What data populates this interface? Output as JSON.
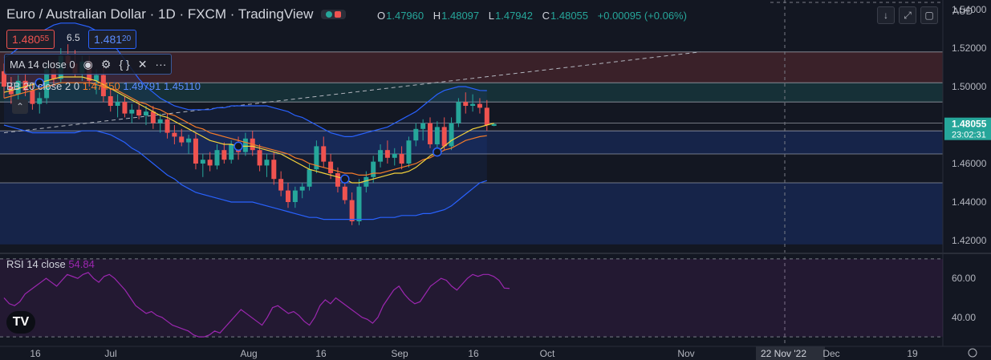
{
  "header": {
    "symbol": "Euro / Australian Dollar",
    "interval": "1D",
    "exchange": "FXCM",
    "source": "TradingView",
    "ohlc": {
      "o_label": "O",
      "o": "1.47960",
      "h_label": "H",
      "h": "1.48097",
      "l_label": "L",
      "l": "1.47942",
      "c_label": "C",
      "c": "1.48055",
      "change": "+0.00095 (+0.06%)"
    },
    "sell_price_main": "1.480",
    "sell_price_sub": "55",
    "spread": "6.5",
    "buy_price_main": "1.481",
    "buy_price_sub": "20",
    "currency": "AUD"
  },
  "indicators": {
    "ma": {
      "label": "MA 14 close 0"
    },
    "bb": {
      "label": "BB 20 close 2 0",
      "basis": "1.47450",
      "upper": "1.49791",
      "lower": "1.45110"
    },
    "rsi": {
      "label": "RSI 14 close",
      "value": "54.84"
    }
  },
  "colors": {
    "up": "#26a69a",
    "down": "#ef5350",
    "ma": "#f5d33b",
    "bb_basis": "#f57c2a",
    "bb_band": "#2962ff",
    "rsi": "#9c27b0",
    "bg": "#131722"
  },
  "icons": [
    "eye-icon",
    "gear-icon",
    "braces-icon",
    "close-icon",
    "more-icon",
    "download-icon",
    "fullscreen-icon",
    "maximize-icon"
  ],
  "chart_data": [
    {
      "type": "candlestick",
      "title": "Euro / Australian Dollar",
      "x_ticks": [
        "16",
        "Jul",
        "Aug",
        "16",
        "Sep",
        "16",
        "Oct",
        "Nov",
        "22 Nov '22",
        "Dec",
        "19"
      ],
      "y_ticks": [
        "1.54000",
        "1.52000",
        "1.50000",
        "1.48000",
        "1.46000",
        "1.44000",
        "1.42000"
      ],
      "ylim": [
        1.415,
        1.545
      ],
      "last_price": "1.48055",
      "countdown": "23:02:31",
      "candles": [
        {
          "o": 1.508,
          "h": 1.512,
          "l": 1.494,
          "c": 1.5
        },
        {
          "o": 1.5,
          "h": 1.505,
          "l": 1.491,
          "c": 1.496
        },
        {
          "o": 1.496,
          "h": 1.506,
          "l": 1.492,
          "c": 1.503
        },
        {
          "o": 1.503,
          "h": 1.507,
          "l": 1.495,
          "c": 1.498
        },
        {
          "o": 1.498,
          "h": 1.502,
          "l": 1.488,
          "c": 1.491
        },
        {
          "o": 1.491,
          "h": 1.497,
          "l": 1.486,
          "c": 1.494
        },
        {
          "o": 1.494,
          "h": 1.512,
          "l": 1.491,
          "c": 1.509
        },
        {
          "o": 1.509,
          "h": 1.513,
          "l": 1.5,
          "c": 1.504
        },
        {
          "o": 1.504,
          "h": 1.52,
          "l": 1.502,
          "c": 1.516
        },
        {
          "o": 1.516,
          "h": 1.522,
          "l": 1.509,
          "c": 1.512
        },
        {
          "o": 1.512,
          "h": 1.519,
          "l": 1.505,
          "c": 1.507
        },
        {
          "o": 1.507,
          "h": 1.516,
          "l": 1.503,
          "c": 1.513
        },
        {
          "o": 1.513,
          "h": 1.516,
          "l": 1.5,
          "c": 1.503
        },
        {
          "o": 1.503,
          "h": 1.509,
          "l": 1.496,
          "c": 1.506
        },
        {
          "o": 1.506,
          "h": 1.51,
          "l": 1.492,
          "c": 1.495
        },
        {
          "o": 1.495,
          "h": 1.499,
          "l": 1.487,
          "c": 1.49
        },
        {
          "o": 1.49,
          "h": 1.496,
          "l": 1.484,
          "c": 1.492
        },
        {
          "o": 1.492,
          "h": 1.495,
          "l": 1.484,
          "c": 1.486
        },
        {
          "o": 1.486,
          "h": 1.491,
          "l": 1.481,
          "c": 1.488
        },
        {
          "o": 1.488,
          "h": 1.492,
          "l": 1.483,
          "c": 1.485
        },
        {
          "o": 1.485,
          "h": 1.49,
          "l": 1.48,
          "c": 1.487
        },
        {
          "o": 1.487,
          "h": 1.49,
          "l": 1.478,
          "c": 1.481
        },
        {
          "o": 1.481,
          "h": 1.486,
          "l": 1.476,
          "c": 1.483
        },
        {
          "o": 1.483,
          "h": 1.486,
          "l": 1.473,
          "c": 1.476
        },
        {
          "o": 1.476,
          "h": 1.48,
          "l": 1.47,
          "c": 1.474
        },
        {
          "o": 1.474,
          "h": 1.478,
          "l": 1.469,
          "c": 1.471
        },
        {
          "o": 1.471,
          "h": 1.475,
          "l": 1.465,
          "c": 1.473
        },
        {
          "o": 1.473,
          "h": 1.476,
          "l": 1.457,
          "c": 1.46
        },
        {
          "o": 1.46,
          "h": 1.465,
          "l": 1.453,
          "c": 1.462
        },
        {
          "o": 1.462,
          "h": 1.466,
          "l": 1.456,
          "c": 1.459
        },
        {
          "o": 1.459,
          "h": 1.47,
          "l": 1.457,
          "c": 1.467
        },
        {
          "o": 1.467,
          "h": 1.471,
          "l": 1.46,
          "c": 1.462
        },
        {
          "o": 1.462,
          "h": 1.472,
          "l": 1.46,
          "c": 1.47
        },
        {
          "o": 1.47,
          "h": 1.474,
          "l": 1.462,
          "c": 1.466
        },
        {
          "o": 1.466,
          "h": 1.476,
          "l": 1.464,
          "c": 1.473
        },
        {
          "o": 1.473,
          "h": 1.477,
          "l": 1.464,
          "c": 1.467
        },
        {
          "o": 1.467,
          "h": 1.47,
          "l": 1.456,
          "c": 1.459
        },
        {
          "o": 1.459,
          "h": 1.465,
          "l": 1.453,
          "c": 1.462
        },
        {
          "o": 1.462,
          "h": 1.466,
          "l": 1.449,
          "c": 1.452
        },
        {
          "o": 1.452,
          "h": 1.456,
          "l": 1.443,
          "c": 1.446
        },
        {
          "o": 1.446,
          "h": 1.45,
          "l": 1.437,
          "c": 1.44
        },
        {
          "o": 1.44,
          "h": 1.448,
          "l": 1.437,
          "c": 1.446
        },
        {
          "o": 1.446,
          "h": 1.45,
          "l": 1.442,
          "c": 1.448
        },
        {
          "o": 1.448,
          "h": 1.46,
          "l": 1.446,
          "c": 1.457
        },
        {
          "o": 1.457,
          "h": 1.472,
          "l": 1.455,
          "c": 1.469
        },
        {
          "o": 1.469,
          "h": 1.474,
          "l": 1.458,
          "c": 1.461
        },
        {
          "o": 1.461,
          "h": 1.465,
          "l": 1.452,
          "c": 1.455
        },
        {
          "o": 1.455,
          "h": 1.458,
          "l": 1.445,
          "c": 1.448
        },
        {
          "o": 1.448,
          "h": 1.452,
          "l": 1.439,
          "c": 1.441
        },
        {
          "o": 1.441,
          "h": 1.445,
          "l": 1.428,
          "c": 1.43
        },
        {
          "o": 1.43,
          "h": 1.452,
          "l": 1.428,
          "c": 1.448
        },
        {
          "o": 1.448,
          "h": 1.456,
          "l": 1.445,
          "c": 1.453
        },
        {
          "o": 1.453,
          "h": 1.464,
          "l": 1.45,
          "c": 1.461
        },
        {
          "o": 1.461,
          "h": 1.47,
          "l": 1.458,
          "c": 1.467
        },
        {
          "o": 1.467,
          "h": 1.472,
          "l": 1.46,
          "c": 1.463
        },
        {
          "o": 1.463,
          "h": 1.468,
          "l": 1.459,
          "c": 1.465
        },
        {
          "o": 1.465,
          "h": 1.469,
          "l": 1.457,
          "c": 1.46
        },
        {
          "o": 1.46,
          "h": 1.474,
          "l": 1.458,
          "c": 1.472
        },
        {
          "o": 1.472,
          "h": 1.481,
          "l": 1.469,
          "c": 1.478
        },
        {
          "o": 1.478,
          "h": 1.483,
          "l": 1.472,
          "c": 1.481
        },
        {
          "o": 1.481,
          "h": 1.484,
          "l": 1.468,
          "c": 1.47
        },
        {
          "o": 1.47,
          "h": 1.482,
          "l": 1.467,
          "c": 1.479
        },
        {
          "o": 1.479,
          "h": 1.484,
          "l": 1.467,
          "c": 1.469
        },
        {
          "o": 1.469,
          "h": 1.484,
          "l": 1.467,
          "c": 1.481
        },
        {
          "o": 1.481,
          "h": 1.494,
          "l": 1.479,
          "c": 1.492
        },
        {
          "o": 1.492,
          "h": 1.497,
          "l": 1.486,
          "c": 1.49
        },
        {
          "o": 1.49,
          "h": 1.496,
          "l": 1.487,
          "c": 1.491
        },
        {
          "o": 1.491,
          "h": 1.494,
          "l": 1.486,
          "c": 1.489
        },
        {
          "o": 1.489,
          "h": 1.493,
          "l": 1.477,
          "c": 1.48
        },
        {
          "o": 1.4796,
          "h": 1.48097,
          "l": 1.47942,
          "c": 1.48055
        }
      ],
      "ma14": [
        1.497,
        1.498,
        1.499,
        1.5,
        1.501,
        1.502,
        1.503,
        1.504,
        1.505,
        1.505,
        1.505,
        1.505,
        1.504,
        1.503,
        1.501,
        1.499,
        1.497,
        1.495,
        1.493,
        1.491,
        1.489,
        1.487,
        1.485,
        1.484,
        1.482,
        1.48,
        1.478,
        1.476,
        1.474,
        1.472,
        1.471,
        1.47,
        1.47,
        1.469,
        1.469,
        1.469,
        1.468,
        1.467,
        1.466,
        1.465,
        1.463,
        1.461,
        1.459,
        1.457,
        1.456,
        1.455,
        1.454,
        1.453,
        1.452,
        1.45,
        1.45,
        1.451,
        1.452,
        1.453,
        1.454,
        1.455,
        1.455,
        1.456,
        1.458,
        1.461,
        1.464,
        1.466,
        1.469,
        1.472,
        1.474,
        1.476,
        1.478,
        1.479,
        1.48,
        1.481
      ],
      "bb_basis": [
        1.494,
        1.495,
        1.496,
        1.497,
        1.498,
        1.499,
        1.5,
        1.501,
        1.502,
        1.502,
        1.502,
        1.502,
        1.502,
        1.501,
        1.5,
        1.499,
        1.498,
        1.496,
        1.494,
        1.492,
        1.491,
        1.489,
        1.488,
        1.486,
        1.485,
        1.483,
        1.481,
        1.479,
        1.478,
        1.476,
        1.475,
        1.474,
        1.473,
        1.472,
        1.471,
        1.47,
        1.469,
        1.468,
        1.467,
        1.466,
        1.465,
        1.463,
        1.462,
        1.46,
        1.459,
        1.458,
        1.457,
        1.456,
        1.455,
        1.455,
        1.454,
        1.454,
        1.455,
        1.455,
        1.456,
        1.457,
        1.458,
        1.459,
        1.46,
        1.462,
        1.463,
        1.465,
        1.467,
        1.468,
        1.47,
        1.472,
        1.473,
        1.474,
        1.4745
      ],
      "bb_upper": [
        1.515,
        1.517,
        1.52,
        1.523,
        1.526,
        1.528,
        1.53,
        1.532,
        1.533,
        1.533,
        1.533,
        1.532,
        1.531,
        1.529,
        1.526,
        1.523,
        1.519,
        1.514,
        1.509,
        1.504,
        1.5,
        1.497,
        1.494,
        1.492,
        1.49,
        1.489,
        1.488,
        1.488,
        1.488,
        1.488,
        1.489,
        1.489,
        1.49,
        1.49,
        1.49,
        1.49,
        1.49,
        1.49,
        1.489,
        1.488,
        1.487,
        1.485,
        1.484,
        1.482,
        1.48,
        1.478,
        1.476,
        1.475,
        1.474,
        1.474,
        1.475,
        1.476,
        1.477,
        1.478,
        1.479,
        1.481,
        1.483,
        1.485,
        1.487,
        1.49,
        1.493,
        1.496,
        1.498,
        1.499,
        1.5,
        1.5,
        1.499,
        1.498,
        1.49791
      ],
      "bb_lower": [
        1.48,
        1.479,
        1.478,
        1.477,
        1.476,
        1.476,
        1.476,
        1.476,
        1.476,
        1.476,
        1.476,
        1.477,
        1.477,
        1.477,
        1.476,
        1.475,
        1.473,
        1.471,
        1.468,
        1.466,
        1.463,
        1.46,
        1.457,
        1.454,
        1.452,
        1.449,
        1.447,
        1.445,
        1.444,
        1.443,
        1.442,
        1.441,
        1.44,
        1.44,
        1.44,
        1.44,
        1.439,
        1.438,
        1.437,
        1.436,
        1.435,
        1.434,
        1.433,
        1.432,
        1.432,
        1.431,
        1.431,
        1.431,
        1.431,
        1.431,
        1.431,
        1.431,
        1.431,
        1.432,
        1.432,
        1.432,
        1.433,
        1.433,
        1.433,
        1.434,
        1.434,
        1.435,
        1.436,
        1.438,
        1.441,
        1.444,
        1.447,
        1.45,
        1.4511
      ],
      "zones": [
        {
          "from": 1.502,
          "to": 1.518,
          "color": "#ef5350"
        },
        {
          "from": 1.492,
          "to": 1.502,
          "color": "#26a69a"
        },
        {
          "from": 1.465,
          "to": 1.477,
          "color": "#2962ff"
        },
        {
          "from": 1.418,
          "to": 1.45,
          "color": "#2962ff"
        }
      ],
      "hlines": [
        1.518,
        1.502,
        1.492,
        1.481,
        1.477,
        1.465,
        1.45
      ],
      "trendline": {
        "from_index": 0,
        "from_price": 1.476,
        "to_index": 98,
        "to_price": 1.518
      }
    },
    {
      "type": "line",
      "title": "RSI 14 close",
      "y_ticks": [
        "60.00",
        "40.00"
      ],
      "ylim": [
        28,
        72
      ],
      "bands": [
        70,
        30
      ],
      "values": [
        50,
        47,
        46,
        48,
        52,
        54,
        56,
        58,
        60,
        58,
        56,
        59,
        62,
        61,
        60,
        62,
        63,
        60,
        58,
        61,
        62,
        60,
        57,
        54,
        50,
        46,
        44,
        42,
        43,
        41,
        40,
        38,
        36,
        35,
        34,
        33,
        31,
        30,
        30,
        31,
        33,
        32,
        35,
        38,
        41,
        44,
        42,
        40,
        38,
        36,
        40,
        45,
        46,
        44,
        42,
        43,
        41,
        38,
        36,
        40,
        46,
        49,
        47,
        50,
        48,
        46,
        44,
        42,
        40,
        39,
        37,
        40,
        46,
        50,
        54,
        56,
        52,
        49,
        47,
        48,
        52,
        56,
        58,
        60,
        59,
        56,
        54,
        57,
        60,
        62,
        61,
        62,
        62,
        61,
        59,
        55,
        54.84
      ],
      "value_label": "54.84"
    }
  ]
}
